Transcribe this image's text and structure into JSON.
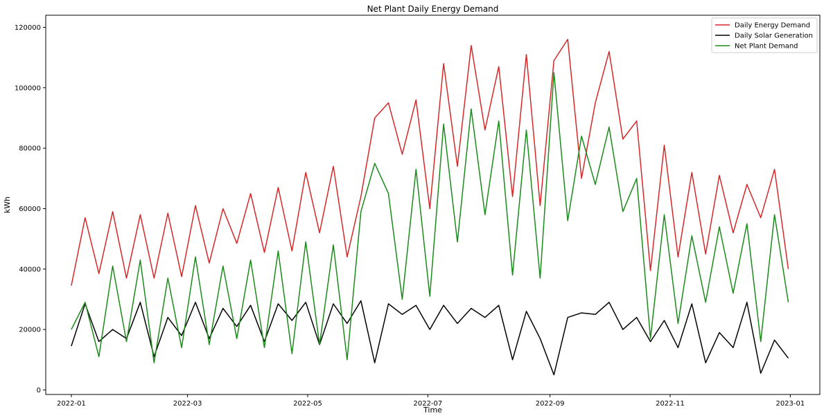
{
  "chart_data": {
    "type": "line",
    "title": "Net Plant Daily Energy Demand",
    "xlabel": "Time",
    "ylabel": "kWh",
    "x_range": [
      "2021-12-19",
      "2023-01-16"
    ],
    "ylim": [
      -1500,
      124000
    ],
    "x_ticks": [
      {
        "date": "2022-01-01",
        "label": "2022-01"
      },
      {
        "date": "2022-03-01",
        "label": "2022-03"
      },
      {
        "date": "2022-05-01",
        "label": "2022-05"
      },
      {
        "date": "2022-07-01",
        "label": "2022-07"
      },
      {
        "date": "2022-09-01",
        "label": "2022-09"
      },
      {
        "date": "2022-11-01",
        "label": "2022-11"
      },
      {
        "date": "2023-01-01",
        "label": "2023-01"
      }
    ],
    "y_ticks": [
      0,
      20000,
      40000,
      60000,
      80000,
      100000,
      120000
    ],
    "y_tick_labels": [
      "0",
      "20000",
      "40000",
      "60000",
      "80000",
      "100000",
      "120000"
    ],
    "grid": false,
    "legend_position": "top-right",
    "colors": {
      "demand": "#d62728",
      "solar": "#000000",
      "net": "#1a8a1a"
    },
    "series": [
      {
        "name": "Daily Energy Demand",
        "color": "#d62728",
        "x": [
          "2022-01-01",
          "2022-01-08",
          "2022-01-15",
          "2022-01-22",
          "2022-01-29",
          "2022-02-05",
          "2022-02-12",
          "2022-02-19",
          "2022-02-26",
          "2022-03-05",
          "2022-03-12",
          "2022-03-19",
          "2022-03-26",
          "2022-04-02",
          "2022-04-09",
          "2022-04-16",
          "2022-04-23",
          "2022-04-30",
          "2022-05-07",
          "2022-05-14",
          "2022-05-21",
          "2022-05-28",
          "2022-06-04",
          "2022-06-11",
          "2022-06-18",
          "2022-06-25",
          "2022-07-02",
          "2022-07-09",
          "2022-07-16",
          "2022-07-23",
          "2022-07-30",
          "2022-08-06",
          "2022-08-13",
          "2022-08-20",
          "2022-08-27",
          "2022-09-03",
          "2022-09-10",
          "2022-09-17",
          "2022-09-24",
          "2022-10-01",
          "2022-10-08",
          "2022-10-15",
          "2022-10-22",
          "2022-10-29",
          "2022-11-05",
          "2022-11-12",
          "2022-11-19",
          "2022-11-26",
          "2022-12-03",
          "2022-12-10",
          "2022-12-17",
          "2022-12-24",
          "2022-12-31"
        ],
        "values": [
          34500,
          57000,
          38500,
          59000,
          37000,
          58000,
          37000,
          58500,
          37500,
          61000,
          42000,
          60000,
          48500,
          65000,
          45500,
          67000,
          46000,
          72000,
          52000,
          74000,
          44000,
          64000,
          90000,
          95000,
          78000,
          96000,
          60000,
          108000,
          74000,
          114000,
          86000,
          107000,
          64000,
          111000,
          61000,
          109000,
          116000,
          70000,
          95000,
          112000,
          83000,
          89000,
          39500,
          81000,
          44000,
          72000,
          45000,
          71000,
          52000,
          68000,
          57000,
          73000,
          40000
        ]
      },
      {
        "name": "Daily Solar Generation",
        "color": "#000000",
        "x": [
          "2022-01-01",
          "2022-01-08",
          "2022-01-15",
          "2022-01-22",
          "2022-01-29",
          "2022-02-05",
          "2022-02-12",
          "2022-02-19",
          "2022-02-26",
          "2022-03-05",
          "2022-03-12",
          "2022-03-19",
          "2022-03-26",
          "2022-04-02",
          "2022-04-09",
          "2022-04-16",
          "2022-04-23",
          "2022-04-30",
          "2022-05-07",
          "2022-05-14",
          "2022-05-21",
          "2022-05-28",
          "2022-06-04",
          "2022-06-11",
          "2022-06-18",
          "2022-06-25",
          "2022-07-02",
          "2022-07-09",
          "2022-07-16",
          "2022-07-23",
          "2022-07-30",
          "2022-08-06",
          "2022-08-13",
          "2022-08-20",
          "2022-08-27",
          "2022-09-03",
          "2022-09-10",
          "2022-09-17",
          "2022-09-24",
          "2022-10-01",
          "2022-10-08",
          "2022-10-15",
          "2022-10-22",
          "2022-10-29",
          "2022-11-05",
          "2022-11-12",
          "2022-11-19",
          "2022-11-26",
          "2022-12-03",
          "2022-12-10",
          "2022-12-17",
          "2022-12-24",
          "2022-12-31"
        ],
        "values": [
          14500,
          28500,
          16000,
          20000,
          17000,
          29000,
          11000,
          24000,
          18000,
          29000,
          17000,
          27000,
          21000,
          28000,
          16000,
          28500,
          23000,
          29000,
          15000,
          28500,
          22000,
          29500,
          9000,
          28500,
          25000,
          28000,
          20000,
          28000,
          22000,
          27000,
          24000,
          28000,
          10000,
          26000,
          17000,
          5000,
          24000,
          25500,
          25000,
          29000,
          20000,
          24000,
          16000,
          23000,
          14000,
          28500,
          9000,
          19000,
          14000,
          29000,
          5500,
          16500,
          10500
        ]
      },
      {
        "name": "Net Plant Demand",
        "color": "#1a8a1a",
        "x": [
          "2022-01-01",
          "2022-01-08",
          "2022-01-15",
          "2022-01-22",
          "2022-01-29",
          "2022-02-05",
          "2022-02-12",
          "2022-02-19",
          "2022-02-26",
          "2022-03-05",
          "2022-03-12",
          "2022-03-19",
          "2022-03-26",
          "2022-04-02",
          "2022-04-09",
          "2022-04-16",
          "2022-04-23",
          "2022-04-30",
          "2022-05-07",
          "2022-05-14",
          "2022-05-21",
          "2022-05-28",
          "2022-06-04",
          "2022-06-11",
          "2022-06-18",
          "2022-06-25",
          "2022-07-02",
          "2022-07-09",
          "2022-07-16",
          "2022-07-23",
          "2022-07-30",
          "2022-08-06",
          "2022-08-13",
          "2022-08-20",
          "2022-08-27",
          "2022-09-03",
          "2022-09-10",
          "2022-09-17",
          "2022-09-24",
          "2022-10-01",
          "2022-10-08",
          "2022-10-15",
          "2022-10-22",
          "2022-10-29",
          "2022-11-05",
          "2022-11-12",
          "2022-11-19",
          "2022-11-26",
          "2022-12-03",
          "2022-12-10",
          "2022-12-17",
          "2022-12-24",
          "2022-12-31"
        ],
        "values": [
          20000,
          29000,
          11000,
          41000,
          16000,
          43000,
          9000,
          37000,
          14000,
          44000,
          15000,
          41000,
          17000,
          43000,
          14000,
          46000,
          12000,
          49000,
          15000,
          48000,
          10000,
          59000,
          75000,
          65000,
          30000,
          73000,
          31000,
          88000,
          49000,
          93000,
          58000,
          89000,
          38000,
          86000,
          37000,
          105000,
          56000,
          84000,
          68000,
          87000,
          59000,
          70000,
          17000,
          58000,
          22000,
          51000,
          29000,
          54000,
          32000,
          55000,
          16000,
          58000,
          29000
        ]
      }
    ]
  }
}
